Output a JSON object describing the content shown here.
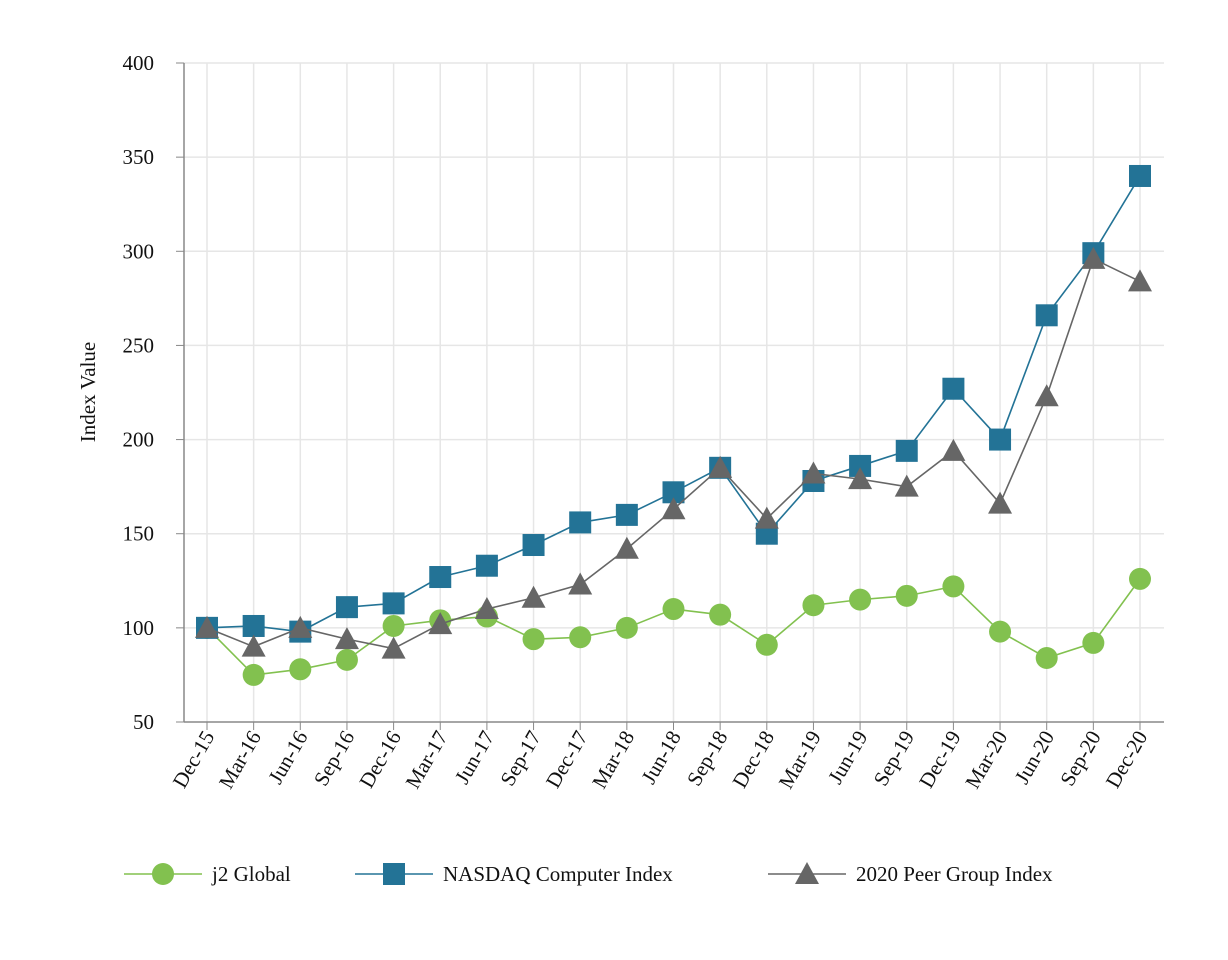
{
  "chart_data": {
    "type": "line",
    "title": "",
    "xlabel": "",
    "ylabel": "Index Value",
    "ylim": [
      50,
      400
    ],
    "yticks": [
      50,
      100,
      150,
      200,
      250,
      300,
      350,
      400
    ],
    "grid": true,
    "legend_position": "bottom",
    "categories": [
      "Dec-15",
      "Mar-16",
      "Jun-16",
      "Sep-16",
      "Dec-16",
      "Mar-17",
      "Jun-17",
      "Sep-17",
      "Dec-17",
      "Mar-18",
      "Jun-18",
      "Sep-18",
      "Dec-18",
      "Mar-19",
      "Jun-19",
      "Sep-19",
      "Dec-19",
      "Mar-20",
      "Jun-20",
      "Sep-20",
      "Dec-20"
    ],
    "series": [
      {
        "name": "j2 Global",
        "marker": "circle",
        "color": "#82c14f",
        "values": [
          100,
          75,
          78,
          83,
          101,
          104,
          106,
          94,
          95,
          100,
          110,
          107,
          91,
          112,
          115,
          117,
          122,
          98,
          84,
          92,
          126
        ]
      },
      {
        "name": "NASDAQ Computer Index",
        "marker": "square",
        "color": "#237396",
        "values": [
          100,
          101,
          98,
          111,
          113,
          127,
          133,
          144,
          156,
          160,
          172,
          185,
          150,
          178,
          186,
          194,
          227,
          200,
          266,
          299,
          340
        ]
      },
      {
        "name": "2020 Peer Group Index",
        "marker": "triangle",
        "color": "#666666",
        "values": [
          100,
          90,
          100,
          94,
          89,
          102,
          110,
          116,
          123,
          142,
          163,
          185,
          158,
          182,
          179,
          175,
          194,
          166,
          223,
          296,
          284
        ]
      }
    ]
  }
}
